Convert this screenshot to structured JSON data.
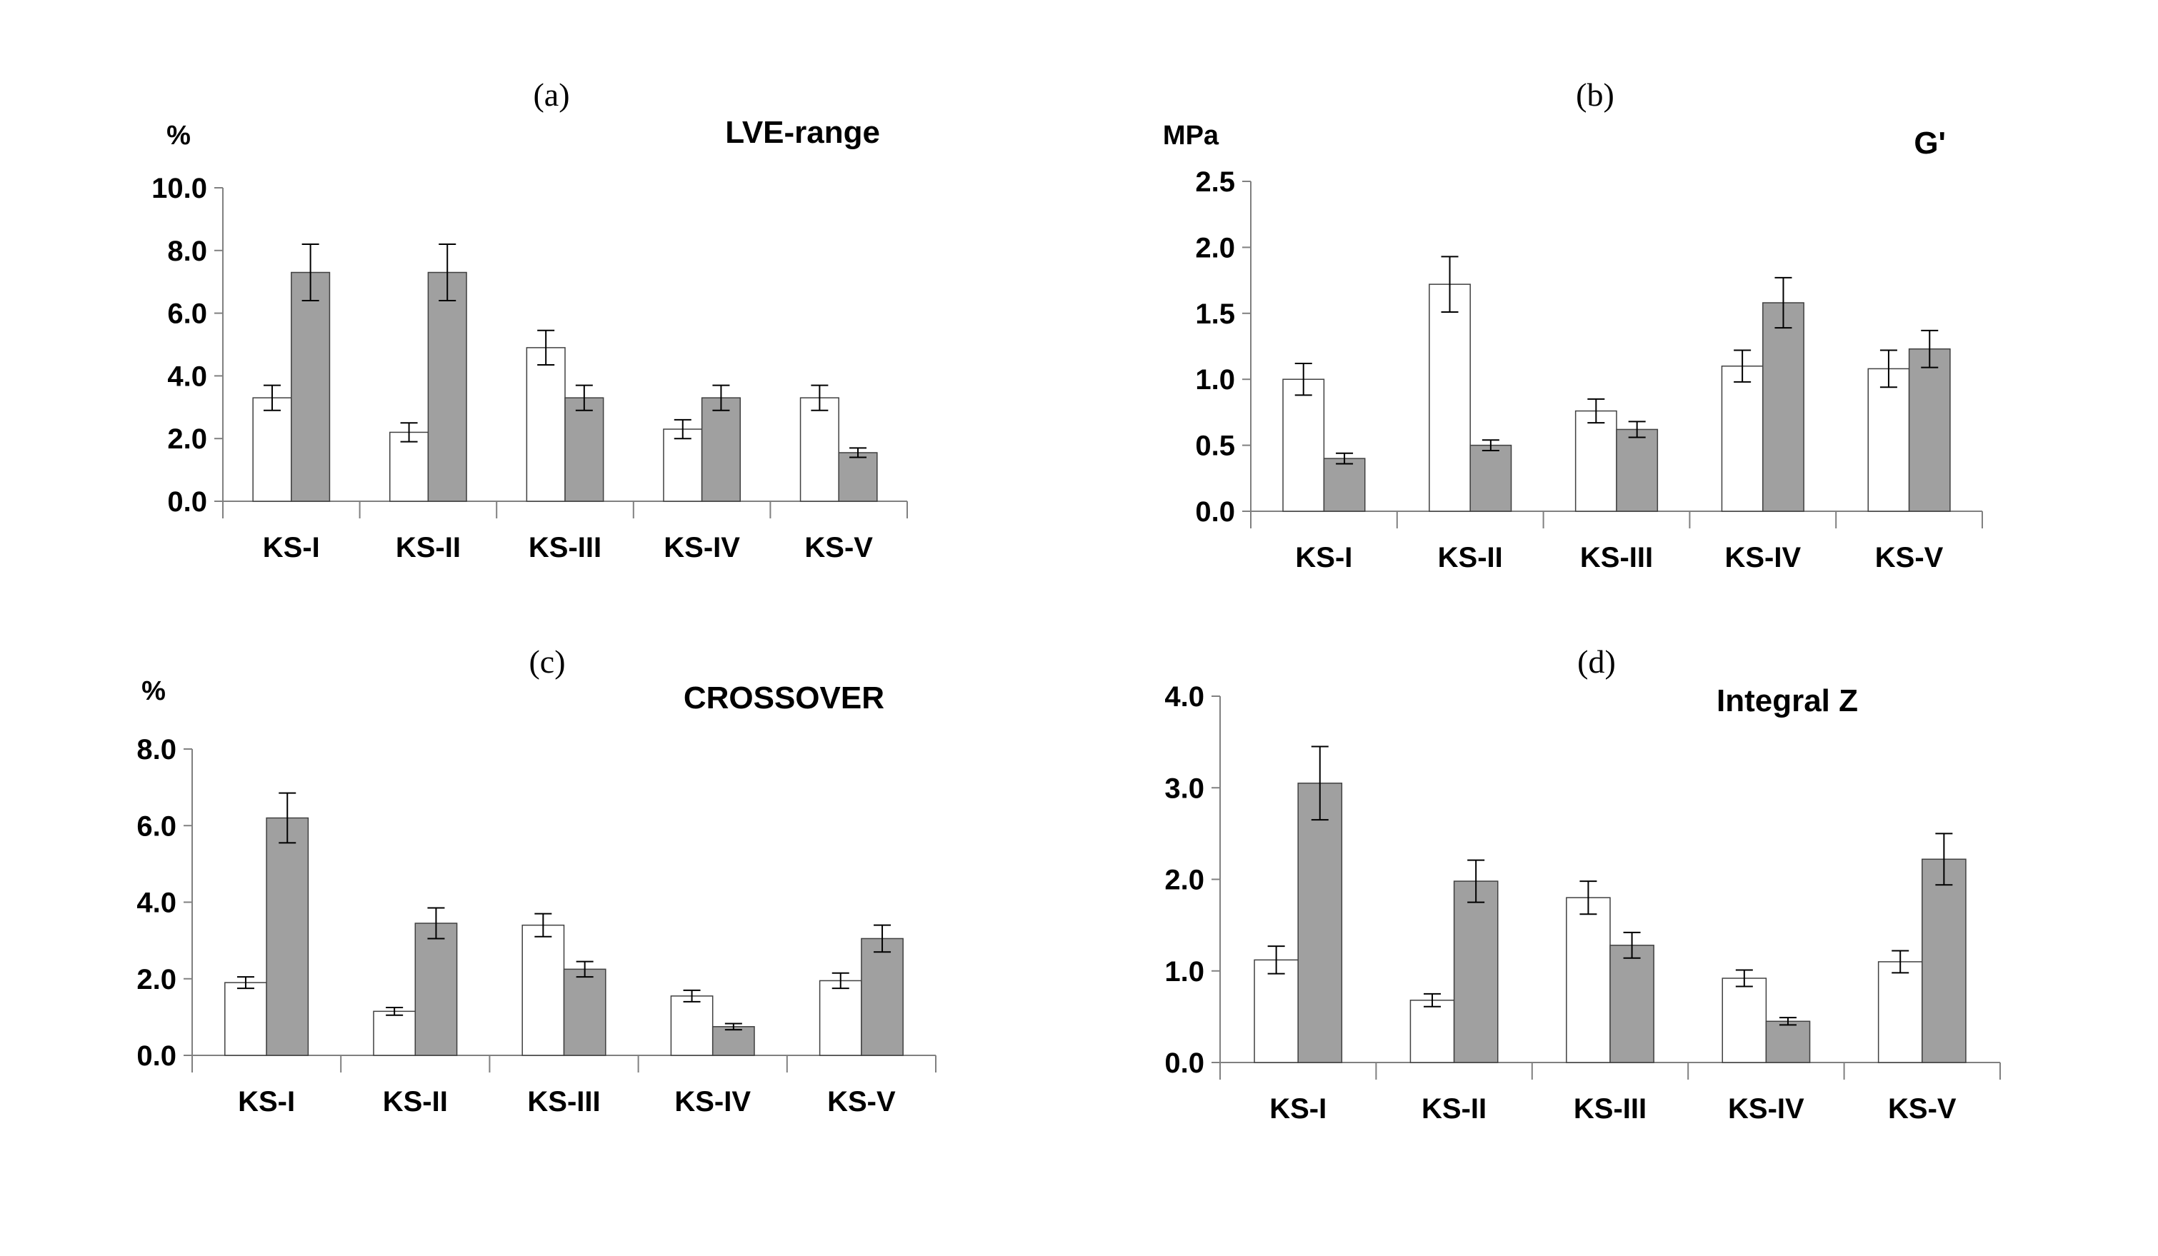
{
  "colors": {
    "series_a": "#ffffff",
    "series_b": "#a0a0a0",
    "axis": "#808080",
    "error": "#000000"
  },
  "chart_data": [
    {
      "type": "bar",
      "panel_label": "(a)",
      "title": "LVE-range",
      "ylabel": "%",
      "categories": [
        "KS-I",
        "KS-II",
        "KS-III",
        "KS-IV",
        "KS-V"
      ],
      "ylim": [
        0,
        10
      ],
      "yticks": [
        "0.0",
        "2.0",
        "4.0",
        "6.0",
        "8.0",
        "10.0"
      ],
      "ytick_values": [
        0,
        2,
        4,
        6,
        8,
        10
      ],
      "series": [
        {
          "name": "white",
          "values": [
            3.3,
            2.2,
            4.9,
            2.3,
            3.3
          ],
          "errors": [
            0.4,
            0.3,
            0.55,
            0.3,
            0.4
          ]
        },
        {
          "name": "gray",
          "values": [
            7.3,
            7.3,
            3.3,
            3.3,
            1.55
          ],
          "errors": [
            0.9,
            0.9,
            0.4,
            0.4,
            0.15
          ]
        }
      ]
    },
    {
      "type": "bar",
      "panel_label": "(b)",
      "title": "G'",
      "ylabel": "MPa",
      "categories": [
        "KS-I",
        "KS-II",
        "KS-III",
        "KS-IV",
        "KS-V"
      ],
      "ylim": [
        0,
        2.5
      ],
      "yticks": [
        "0.0",
        "0.5",
        "1.0",
        "1.5",
        "2.0",
        "2.5"
      ],
      "ytick_values": [
        0,
        0.5,
        1,
        1.5,
        2,
        2.5
      ],
      "series": [
        {
          "name": "white",
          "values": [
            1.0,
            1.72,
            0.76,
            1.1,
            1.08
          ],
          "errors": [
            0.12,
            0.21,
            0.09,
            0.12,
            0.14
          ]
        },
        {
          "name": "gray",
          "values": [
            0.4,
            0.5,
            0.62,
            1.58,
            1.23
          ],
          "errors": [
            0.04,
            0.04,
            0.06,
            0.19,
            0.14
          ]
        }
      ]
    },
    {
      "type": "bar",
      "panel_label": "(c)",
      "title": "CROSSOVER",
      "ylabel": "%",
      "categories": [
        "KS-I",
        "KS-II",
        "KS-III",
        "KS-IV",
        "KS-V"
      ],
      "ylim": [
        0,
        8
      ],
      "yticks": [
        "0.0",
        "2.0",
        "4.0",
        "6.0",
        "8.0"
      ],
      "ytick_values": [
        0,
        2,
        4,
        6,
        8
      ],
      "series": [
        {
          "name": "white",
          "values": [
            1.9,
            1.15,
            3.4,
            1.55,
            1.95
          ],
          "errors": [
            0.15,
            0.1,
            0.3,
            0.15,
            0.2
          ]
        },
        {
          "name": "gray",
          "values": [
            6.2,
            3.45,
            2.25,
            0.75,
            3.05
          ],
          "errors": [
            0.65,
            0.4,
            0.2,
            0.08,
            0.35
          ]
        }
      ]
    },
    {
      "type": "bar",
      "panel_label": "(d)",
      "title": "Integral Z",
      "ylabel": "",
      "categories": [
        "KS-I",
        "KS-II",
        "KS-III",
        "KS-IV",
        "KS-V"
      ],
      "ylim": [
        0,
        4
      ],
      "yticks": [
        "0.0",
        "1.0",
        "2.0",
        "3.0",
        "4.0"
      ],
      "ytick_values": [
        0,
        1,
        2,
        3,
        4
      ],
      "series": [
        {
          "name": "white",
          "values": [
            1.12,
            0.68,
            1.8,
            0.92,
            1.1
          ],
          "errors": [
            0.15,
            0.07,
            0.18,
            0.09,
            0.12
          ]
        },
        {
          "name": "gray",
          "values": [
            3.05,
            1.98,
            1.28,
            0.45,
            2.22
          ],
          "errors": [
            0.4,
            0.23,
            0.14,
            0.04,
            0.28
          ]
        }
      ]
    }
  ]
}
